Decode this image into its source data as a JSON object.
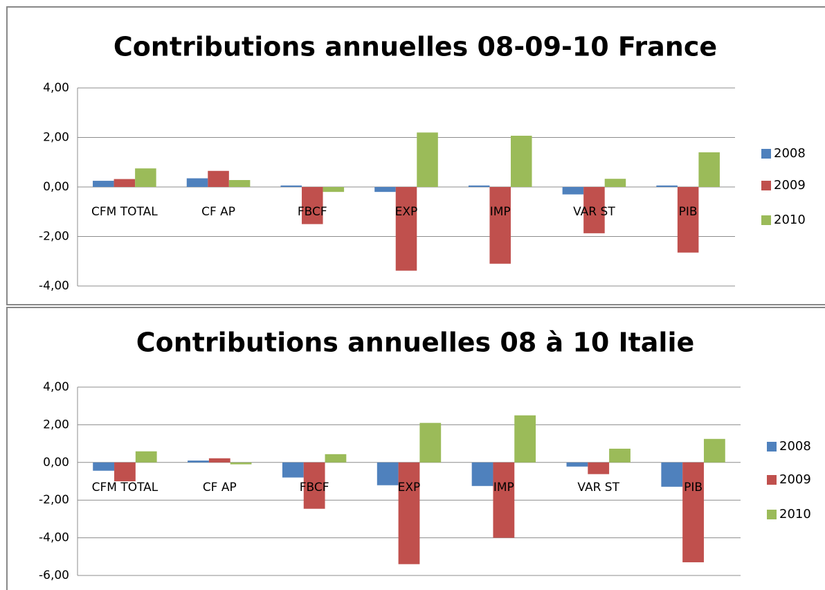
{
  "chart_data": [
    {
      "type": "bar",
      "title": "Contributions annuelles 08-09-10 France",
      "categories": [
        "CFM TOTAL",
        "CF AP",
        "FBCF",
        "EXP",
        "IMP",
        "VAR ST",
        "PIB"
      ],
      "series": [
        {
          "name": "2008",
          "color": "#4f81bd",
          "values": [
            0.25,
            0.35,
            0.06,
            -0.2,
            0.06,
            -0.3,
            0.06
          ]
        },
        {
          "name": "2009",
          "color": "#c0504d",
          "values": [
            0.32,
            0.65,
            -1.5,
            -3.38,
            -3.1,
            -1.87,
            -2.65
          ]
        },
        {
          "name": "2010",
          "color": "#9bbb59",
          "values": [
            0.75,
            0.28,
            -0.2,
            2.2,
            2.07,
            0.33,
            1.4
          ]
        }
      ],
      "ylim": [
        -4,
        4
      ],
      "yticks": [
        {
          "value": -4,
          "label": "-4,00"
        },
        {
          "value": -2,
          "label": "-2,00"
        },
        {
          "value": 0,
          "label": "0,00"
        },
        {
          "value": 2,
          "label": "2,00"
        },
        {
          "value": 4,
          "label": "4,00"
        }
      ],
      "grid": true
    },
    {
      "type": "bar",
      "title": "Contributions annuelles 08 à 10 Italie",
      "categories": [
        "CFM TOTAL",
        "CF AP",
        "FBCF",
        "EXP",
        "IMP",
        "VAR ST",
        "PIB"
      ],
      "series": [
        {
          "name": "2008",
          "color": "#4f81bd",
          "values": [
            -0.44,
            0.1,
            -0.8,
            -1.21,
            -1.25,
            -0.22,
            -1.29
          ]
        },
        {
          "name": "2009",
          "color": "#c0504d",
          "values": [
            -1.0,
            0.22,
            -2.46,
            -5.4,
            -4.0,
            -0.62,
            -5.3
          ]
        },
        {
          "name": "2010",
          "color": "#9bbb59",
          "values": [
            0.59,
            -0.1,
            0.44,
            2.1,
            2.5,
            0.73,
            1.25
          ]
        }
      ],
      "ylim": [
        -6,
        4
      ],
      "yticks": [
        {
          "value": -6,
          "label": "-6,00"
        },
        {
          "value": -4,
          "label": "-4,00"
        },
        {
          "value": -2,
          "label": "-2,00"
        },
        {
          "value": 0,
          "label": "0,00"
        },
        {
          "value": 2,
          "label": "2,00"
        },
        {
          "value": 4,
          "label": "4,00"
        }
      ],
      "grid": true
    }
  ]
}
